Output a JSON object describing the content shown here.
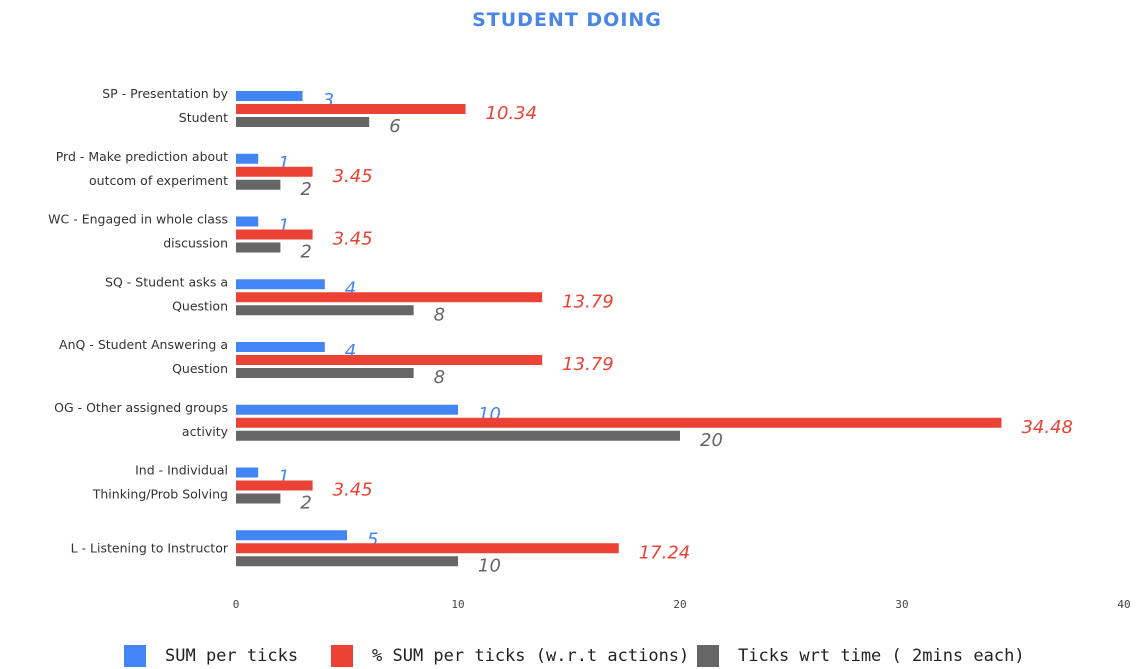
{
  "chart_data": {
    "type": "bar",
    "orientation": "horizontal",
    "title": "STUDENT DOING",
    "title_color": "#4a86e8",
    "categories": [
      [
        "SP - Presentation by",
        "Student"
      ],
      [
        "Prd - Make prediction about",
        "outcom of experiment"
      ],
      [
        "WC - Engaged in whole class",
        "discussion"
      ],
      [
        "SQ - Student asks a",
        "Question"
      ],
      [
        "AnQ - Student Answering a",
        "Question"
      ],
      [
        "OG - Other assigned groups",
        "activity"
      ],
      [
        "Ind - Individual",
        "Thinking/Prob Solving"
      ],
      [
        "L - Listening to Instructor"
      ]
    ],
    "series": [
      {
        "name": "SUM per ticks",
        "color": "#4285f4",
        "values": [
          3,
          1,
          1,
          4,
          4,
          10,
          1,
          5
        ],
        "labels": [
          "3",
          "1",
          "1",
          "4",
          "4",
          "10",
          "1",
          "5"
        ]
      },
      {
        "name": "% SUM per ticks (w.r.t actions)",
        "color": "#ea4335",
        "values": [
          10.34,
          3.45,
          3.45,
          13.79,
          13.79,
          34.48,
          3.45,
          17.24
        ],
        "labels": [
          "10.34",
          "3.45",
          "3.45",
          "13.79",
          "13.79",
          "34.48",
          "3.45",
          "17.24"
        ]
      },
      {
        "name": "Ticks wrt time ( 2mins each)",
        "color": "#666666",
        "values": [
          6,
          2,
          2,
          8,
          8,
          20,
          2,
          10
        ],
        "labels": [
          "6",
          "2",
          "2",
          "8",
          "8",
          "20",
          "2",
          "10"
        ]
      }
    ],
    "xlim": [
      0,
      40
    ],
    "xticks": [
      "0",
      "10",
      "20",
      "30",
      "40"
    ],
    "grid": false,
    "legend_position": "bottom"
  }
}
